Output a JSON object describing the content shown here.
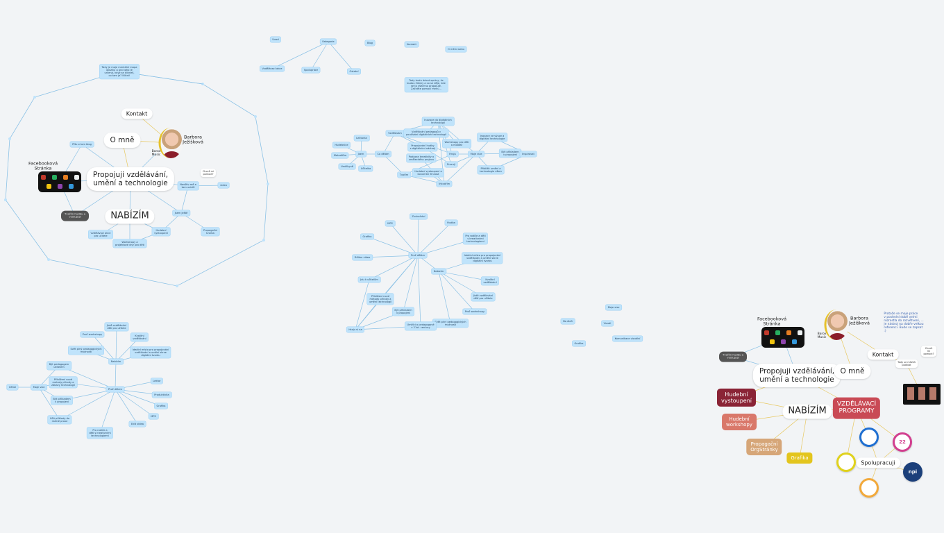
{
  "canvas": {
    "background": "#f2f4f6",
    "edge_color": "#8cc2e6",
    "accent_yellow": "#e6c12b"
  },
  "nodes": [
    {
      "id": "a_note",
      "kind": "blue",
      "label": "Tady je moje mentální mapa\nobsahu a pro koho je\nurčená, když se klikneš,\nco tam je? Klikni!"
    },
    {
      "id": "a_kontakt",
      "kind": "hand",
      "label": "Kontakt"
    },
    {
      "id": "a_omne",
      "kind": "hand big",
      "label": "O mně"
    },
    {
      "id": "a_name",
      "kind": "plain",
      "label": "Barbora\nJežíšková"
    },
    {
      "id": "a_barox",
      "kind": "plain small",
      "label": "Barox\nMusic"
    },
    {
      "id": "a_blog",
      "kind": "blue",
      "label": "Píšu o tom blog"
    },
    {
      "id": "a_fb",
      "kind": "plain",
      "label": "Facebooková\nStránka"
    },
    {
      "id": "a_center",
      "kind": "hand big",
      "label": "Propojuji vzdělávání,\numění a technologie"
    },
    {
      "id": "a_help",
      "kind": "tiny",
      "label": "Chceš mi\npomoct?"
    },
    {
      "id": "a_visit",
      "kind": "blue",
      "label": "Navštiv mě a\ntam uvidíš"
    },
    {
      "id": "a_video",
      "kind": "blue",
      "label": "video"
    },
    {
      "id": "a_dark",
      "kind": "dark",
      "label": "Tvořím hudbu a\nvystupuji"
    },
    {
      "id": "a_nabizim",
      "kind": "hand title",
      "label": "NABÍZÍM"
    },
    {
      "id": "a_jsem",
      "kind": "blue",
      "label": "Jsem ještě"
    },
    {
      "id": "a_vzdel",
      "kind": "blue",
      "label": "Vzdělávací akce\npro učitele"
    },
    {
      "id": "a_work",
      "kind": "blue",
      "label": "Workshopy a\nprojektové dny pro děti"
    },
    {
      "id": "a_hud",
      "kind": "blue",
      "label": "Hudební\nvystoupení"
    },
    {
      "id": "a_prop",
      "kind": "blue",
      "label": "Propagační\ntvorba"
    },
    {
      "id": "b_uvod",
      "kind": "blue",
      "label": "Úvod"
    },
    {
      "id": "b_kat",
      "kind": "blue",
      "label": "Kategorie"
    },
    {
      "id": "b_blog",
      "kind": "blue",
      "label": "Blog"
    },
    {
      "id": "b_kontakt",
      "kind": "blue",
      "label": "Kontakt"
    },
    {
      "id": "b_omne",
      "kind": "blue",
      "label": "O mém webu"
    },
    {
      "id": "b_akce",
      "kind": "blue",
      "label": "Vzdělávací akce"
    },
    {
      "id": "b_spol",
      "kind": "blue",
      "label": "Spolupráce"
    },
    {
      "id": "b_ost",
      "kind": "blue",
      "label": "Ostatní"
    },
    {
      "id": "b_note",
      "kind": "blue",
      "label": "Tady budu dávat zprávy, že\nbudou články a co se děje, kde\nse to všechno propojuje.\nZačněte pomocí menu..."
    },
    {
      "id": "c_jsem",
      "kind": "blue",
      "label": "Jsem"
    },
    {
      "id": "c_codelam",
      "kind": "blue",
      "label": "Co dělám"
    },
    {
      "id": "c_lekt",
      "kind": "blue",
      "label": "Lektorka"
    },
    {
      "id": "c_hudeb",
      "kind": "blue",
      "label": "Hudebnice"
    },
    {
      "id": "c_metod",
      "kind": "blue",
      "label": "Metodička"
    },
    {
      "id": "c_umel",
      "kind": "blue",
      "label": "Umělkyně"
    },
    {
      "id": "c_ucit",
      "kind": "blue",
      "label": "Učitelka"
    },
    {
      "id": "c_vzdel",
      "kind": "blue",
      "label": "Vzdělávám"
    },
    {
      "id": "c_inov",
      "kind": "blue",
      "label": "Inovace do digitálních\ntechnologií"
    },
    {
      "id": "c_s1",
      "kind": "blue",
      "label": "Vzdělávání pedagogů v\npoužívání digitálních technologií"
    },
    {
      "id": "c_s2",
      "kind": "blue",
      "label": "Propojování hudby\ns digitálními nástroji"
    },
    {
      "id": "c_s3",
      "kind": "blue",
      "label": "Workshopy pro děti\na mládež"
    },
    {
      "id": "c_s4",
      "kind": "blue",
      "label": "Podpora kreativity a\numěleckého projevu"
    },
    {
      "id": "c_s5",
      "kind": "blue",
      "label": "Hudební vystoupení a\nkoncertní činnost"
    },
    {
      "id": "c_tvorim",
      "kind": "blue",
      "label": "Tvořím"
    },
    {
      "id": "c_hraju",
      "kind": "blue",
      "label": "Hraju"
    },
    {
      "id": "c_pracuji",
      "kind": "blue",
      "label": "Pracuji"
    },
    {
      "id": "c_vytv",
      "kind": "blue",
      "label": "Vytvářím"
    },
    {
      "id": "c_vize",
      "kind": "blue",
      "label": "Moje vize"
    },
    {
      "id": "c_v1",
      "kind": "blue",
      "label": "Inovace ve výuce a\ndigitální technologie"
    },
    {
      "id": "c_v2",
      "kind": "blue",
      "label": "Být příkladem\nv propojení"
    },
    {
      "id": "c_v3",
      "kind": "blue",
      "label": "Přiblížit umění a\ntechnologie všem"
    },
    {
      "id": "c_insp",
      "kind": "blue",
      "label": "Inspirovat"
    },
    {
      "id": "d_center",
      "kind": "blue",
      "label": "Proč dělám"
    },
    {
      "id": "d_zvuk",
      "kind": "blue",
      "label": "Zvukařství"
    },
    {
      "id": "d_mps",
      "kind": "blue",
      "label": "MPS"
    },
    {
      "id": "d_hudba",
      "kind": "blue",
      "label": "Hudba"
    },
    {
      "id": "d_pro",
      "kind": "blue",
      "label": "Pro rodiče a děti\ns kreativními\ntechnologiemi"
    },
    {
      "id": "d_graf",
      "kind": "blue",
      "label": "Grafika"
    },
    {
      "id": "d_video",
      "kind": "blue",
      "label": "Dělám video"
    },
    {
      "id": "d_ideal",
      "kind": "blue",
      "label": "Ideální místo pro propojování\nvzdělávání a umění skrze\ndigitální tvorbu"
    },
    {
      "id": "d_nab",
      "kind": "blue",
      "label": "Nabízím"
    },
    {
      "id": "d_kval",
      "kind": "blue",
      "label": "Kvalitní\nvzdělávání"
    },
    {
      "id": "d_jiste",
      "kind": "blue",
      "label": "Jistě vzdělávání\ndětí pro učitele"
    },
    {
      "id": "d_proc",
      "kind": "blue",
      "label": "Proč workshopy"
    },
    {
      "id": "d_svet",
      "kind": "blue",
      "label": "Svět plný pedagogických\nmožností"
    },
    {
      "id": "d_jdu",
      "kind": "blue",
      "label": "Jdu k učitelům"
    },
    {
      "id": "d_prip",
      "kind": "blue",
      "label": "Přiblížení nové\nmetody přírody a\numění technologií"
    },
    {
      "id": "d_byt",
      "kind": "blue",
      "label": "Být příkladem\nv propojení"
    },
    {
      "id": "d_umel",
      "kind": "blue",
      "label": "Umělci a pedagogové\nv 21st. century"
    },
    {
      "id": "d_hraju",
      "kind": "blue",
      "label": "Hraju si na"
    },
    {
      "id": "e_ucit",
      "kind": "blue",
      "label": "Učitel"
    },
    {
      "id": "e_vize",
      "kind": "blue",
      "label": "Moje vize"
    },
    {
      "id": "e_1",
      "kind": "blue",
      "label": "Být pedagogem\nučitelem"
    },
    {
      "id": "e_2",
      "kind": "blue",
      "label": "Přiblížení nové\nmetody přírody a\nzábavy technologií"
    },
    {
      "id": "e_3",
      "kind": "blue",
      "label": "Být příkladem\nv propojení"
    },
    {
      "id": "e_4",
      "kind": "blue",
      "label": "Učit příklady do\nreálné praxe"
    },
    {
      "id": "e_center",
      "kind": "blue",
      "label": "Proč dělám"
    },
    {
      "id": "e_nab",
      "kind": "blue",
      "label": "Nabízím"
    },
    {
      "id": "e_n1",
      "kind": "blue",
      "label": "Proč workshopy"
    },
    {
      "id": "e_n2",
      "kind": "blue",
      "label": "Jistě vzdělávání\ndětí pro učitele"
    },
    {
      "id": "e_n3",
      "kind": "blue",
      "label": "Kvalitní\nvzdělávání"
    },
    {
      "id": "e_n4",
      "kind": "blue",
      "label": "Ideální místo pro propojování\nvzdělávání a umění skrze\ndigitální tvorbu"
    },
    {
      "id": "e_n5",
      "kind": "blue",
      "label": "Svět plný pedagogických\nmožností"
    },
    {
      "id": "e_lekt",
      "kind": "blue",
      "label": "Lektor"
    },
    {
      "id": "e_prod",
      "kind": "blue",
      "label": "Produktivita"
    },
    {
      "id": "e_graf",
      "kind": "blue",
      "label": "Grafika"
    },
    {
      "id": "e_mps",
      "kind": "blue",
      "label": "MPS"
    },
    {
      "id": "e_edit",
      "kind": "blue",
      "label": "Edit videa"
    },
    {
      "id": "e_pro",
      "kind": "blue",
      "label": "Pro rodiče a\nděti s kreativními\ntechnologiemi"
    },
    {
      "id": "f_vize",
      "kind": "blue",
      "label": "Moje vize"
    },
    {
      "id": "f_dal",
      "kind": "blue",
      "label": "Na dlaň"
    },
    {
      "id": "f_viz",
      "kind": "blue",
      "label": "Vizuál"
    },
    {
      "id": "f_kom",
      "kind": "blue",
      "label": "Komunikace vizuální"
    },
    {
      "id": "f_graf",
      "kind": "blue",
      "label": "Grafika"
    },
    {
      "id": "g_name",
      "kind": "plain",
      "label": "Barbora\nJežíšková"
    },
    {
      "id": "g_barox",
      "kind": "plain small",
      "label": "Barox\nMusic"
    },
    {
      "id": "g_note",
      "kind": "note",
      "label": "Protože se moje práce\nv poslední době velmi\nrozrostla do rozvětvení, ...\nje nástroj na dobře velkou\nreferenci. Bude se zapsat\n:)"
    },
    {
      "id": "g_fb",
      "kind": "plain",
      "label": "Facebooková\nStránka"
    },
    {
      "id": "g_dark",
      "kind": "dark",
      "label": "Tvořím hudbu a\nvystupuji"
    },
    {
      "id": "g_kontakt",
      "kind": "hand",
      "label": "Kontakt"
    },
    {
      "id": "g_help",
      "kind": "tiny",
      "label": "Chceš mi\npomoct?"
    },
    {
      "id": "g_small",
      "kind": "tiny",
      "label": "Tady se můžeš\npodívat"
    },
    {
      "id": "g_center",
      "kind": "hand big",
      "label": "Propojuji vzdělávání,\numění a technologie"
    },
    {
      "id": "g_omne",
      "kind": "hand big",
      "label": "O mně"
    },
    {
      "id": "g_hud",
      "kind": "c-wine",
      "label": "Hudební\nvystoupení"
    },
    {
      "id": "g_nab",
      "kind": "hand title",
      "label": "NABÍZÍM"
    },
    {
      "id": "g_vzdel",
      "kind": "c-red",
      "label": "VZDĚLÁVACÍ\nPROGRAMY"
    },
    {
      "id": "g_work",
      "kind": "c-salmon",
      "label": "Hudební\nworkshopy"
    },
    {
      "id": "g_prop",
      "kind": "c-tan",
      "label": "Propagační\nOrgStránky"
    },
    {
      "id": "g_graf",
      "kind": "c-yellow",
      "label": "Grafika"
    },
    {
      "id": "g_spol",
      "kind": "hand",
      "label": "Spolupracuji"
    }
  ],
  "logos": [
    {
      "id": "g_logo1",
      "name": "partner-logo-circle",
      "text": "",
      "color": "#1f6fd1"
    },
    {
      "id": "g_logo2",
      "name": "partner-logo-festival",
      "text": "22",
      "color": "#d23f8f"
    },
    {
      "id": "g_logo3",
      "name": "partner-logo-figure",
      "text": "",
      "color": "#e0d21d"
    },
    {
      "id": "g_logo4",
      "name": "npi-logo",
      "text": "npi",
      "color": "#1b3f7a"
    },
    {
      "id": "g_logo5",
      "name": "pinwheel-logo",
      "text": "",
      "color": "#f2a93b"
    }
  ],
  "edges": [
    [
      "a_note",
      "ring1"
    ],
    [
      "a_kontakt",
      "a_photo"
    ],
    [
      "a_omne",
      "a_photo"
    ],
    [
      "a_omne",
      "a_center"
    ],
    [
      "a_barox",
      "a_center"
    ],
    [
      "a_blog",
      "a_center"
    ],
    [
      "a_blog",
      "a_collage"
    ],
    [
      "a_collage",
      "a_center"
    ],
    [
      "a_collage",
      "a_dark"
    ],
    [
      "a_dark",
      "a_center"
    ],
    [
      "a_center",
      "a_visit"
    ],
    [
      "a_visit",
      "a_video"
    ],
    [
      "a_center",
      "a_jsem"
    ],
    [
      "a_visit",
      "a_jsem"
    ],
    [
      "a_jsem",
      "a_prop"
    ],
    [
      "a_jsem",
      "a_hud"
    ],
    [
      "a_center",
      "a_nabizim"
    ],
    [
      "a_nabizim",
      "a_vzdel"
    ],
    [
      "a_nabizim",
      "a_work"
    ],
    [
      "a_nabizim",
      "a_hud"
    ],
    [
      "a_hud",
      "a_work"
    ],
    [
      "b_kat",
      "b_akce"
    ],
    [
      "b_kat",
      "b_spol"
    ],
    [
      "b_kat",
      "b_ost"
    ],
    [
      "c_lekt",
      "c_jsem"
    ],
    [
      "c_hudeb",
      "c_jsem"
    ],
    [
      "c_metod",
      "c_jsem"
    ],
    [
      "c_umel",
      "c_jsem"
    ],
    [
      "c_ucit",
      "c_jsem"
    ],
    [
      "c_jsem",
      "c_codelam"
    ],
    [
      "c_codelam",
      "c_vzdel"
    ],
    [
      "c_codelam",
      "c_tvorim"
    ],
    [
      "c_vzdel",
      "c_inov"
    ],
    [
      "c_vzdel",
      "c_s2"
    ],
    [
      "c_vzdel",
      "c_hraju"
    ],
    [
      "c_s1",
      "c_inov"
    ],
    [
      "c_inov",
      "c_s3"
    ],
    [
      "c_inov",
      "c_hraju"
    ],
    [
      "c_inov",
      "c_pracuji"
    ],
    [
      "c_inov",
      "c_vytv"
    ],
    [
      "c_inov",
      "c_vize"
    ],
    [
      "c_s2",
      "c_pracuji"
    ],
    [
      "c_tvorim",
      "c_vytv"
    ],
    [
      "c_tvorim",
      "c_hraju"
    ],
    [
      "c_s4",
      "c_vytv"
    ],
    [
      "c_s5",
      "c_vytv"
    ],
    [
      "c_vytv",
      "c_vize"
    ],
    [
      "c_pracuji",
      "c_vize"
    ],
    [
      "c_hraju",
      "c_vize"
    ],
    [
      "c_vize",
      "c_v1"
    ],
    [
      "c_vize",
      "c_v2"
    ],
    [
      "c_vize",
      "c_v3"
    ],
    [
      "c_v1",
      "c_insp"
    ],
    [
      "c_v2",
      "c_insp"
    ],
    [
      "c_v3",
      "c_insp"
    ],
    [
      "d_zvuk",
      "d_center"
    ],
    [
      "d_mps",
      "d_center"
    ],
    [
      "d_hudba",
      "d_center"
    ],
    [
      "d_pro",
      "d_center"
    ],
    [
      "d_graf",
      "d_center"
    ],
    [
      "d_video",
      "d_center"
    ],
    [
      "d_center",
      "d_nab"
    ],
    [
      "d_nab",
      "d_ideal"
    ],
    [
      "d_nab",
      "d_kval"
    ],
    [
      "d_nab",
      "d_jiste"
    ],
    [
      "d_nab",
      "d_proc"
    ],
    [
      "d_nab",
      "d_svet"
    ],
    [
      "d_center",
      "d_jdu"
    ],
    [
      "d_center",
      "d_prip"
    ],
    [
      "d_center",
      "d_byt"
    ],
    [
      "d_center",
      "d_umel"
    ],
    [
      "d_center",
      "d_hraju"
    ],
    [
      "d_jdu",
      "d_hraju"
    ],
    [
      "d_prip",
      "d_hraju"
    ],
    [
      "d_byt",
      "d_hraju"
    ],
    [
      "d_umel",
      "d_hraju"
    ],
    [
      "e_ucit",
      "e_vize"
    ],
    [
      "e_vize",
      "e_1"
    ],
    [
      "e_vize",
      "e_2"
    ],
    [
      "e_vize",
      "e_3"
    ],
    [
      "e_vize",
      "e_4"
    ],
    [
      "e_1",
      "e_center"
    ],
    [
      "e_2",
      "e_center"
    ],
    [
      "e_3",
      "e_center"
    ],
    [
      "e_4",
      "e_center"
    ],
    [
      "e_center",
      "e_nab"
    ],
    [
      "e_nab",
      "e_n1"
    ],
    [
      "e_nab",
      "e_n2"
    ],
    [
      "e_nab",
      "e_n3"
    ],
    [
      "e_nab",
      "e_n4"
    ],
    [
      "e_nab",
      "e_n5"
    ],
    [
      "e_center",
      "e_lekt"
    ],
    [
      "e_center",
      "e_prod"
    ],
    [
      "e_center",
      "e_graf"
    ],
    [
      "e_center",
      "e_mps"
    ],
    [
      "e_center",
      "e_edit"
    ],
    [
      "e_center",
      "e_pro"
    ],
    [
      "g_photo",
      "g_omne"
    ],
    [
      "g_photo",
      "g_kontakt"
    ],
    [
      "g_kontakt",
      "g_small"
    ],
    [
      "g_small",
      "g_video"
    ],
    [
      "g_omne",
      "g_center"
    ],
    [
      "g_collage",
      "g_center"
    ],
    [
      "g_collage",
      "g_dark"
    ],
    [
      "g_dark",
      "g_center"
    ],
    [
      "g_center",
      "g_hud"
    ],
    [
      "g_center",
      "g_vzdel"
    ],
    [
      "g_vzdel",
      "g_nab"
    ],
    [
      "g_hud",
      "g_nab"
    ],
    [
      "g_work",
      "g_nab"
    ],
    [
      "g_prop",
      "g_nab"
    ],
    [
      "g_graf",
      "g_nab"
    ],
    [
      "g_vzdel",
      "g_logo1"
    ],
    [
      "g_vzdel",
      "g_logo2"
    ],
    [
      "g_vzdel",
      "g_logo3"
    ],
    [
      "g_logo1",
      "g_spol"
    ],
    [
      "g_logo2",
      "g_spol"
    ],
    [
      "g_logo3",
      "g_spol"
    ],
    [
      "g_spol",
      "g_logo4"
    ],
    [
      "g_spol",
      "g_logo5"
    ]
  ]
}
